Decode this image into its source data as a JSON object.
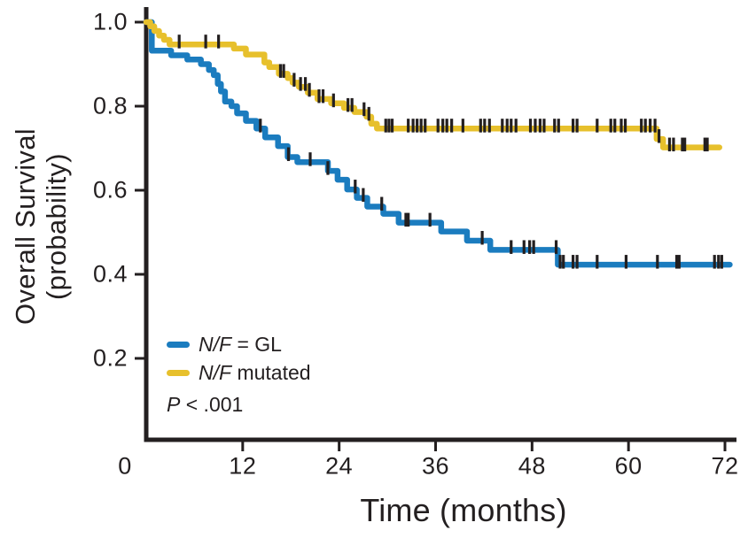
{
  "figure": {
    "ylabel_line1": "Overall Survival",
    "ylabel_line2": "(probability)",
    "xlabel": "Time (months)",
    "legend_gl": {
      "italic": "N/F",
      "rest": " = GL"
    },
    "legend_mutated": {
      "italic": "N/F",
      "rest": " mutated"
    },
    "p_value": {
      "italic": "P",
      "rest": " < .001"
    }
  },
  "chart_data": {
    "type": "line",
    "subtype": "kaplan-meier-step",
    "title": "",
    "xlabel": "Time (months)",
    "ylabel": "Overall Survival (probability)",
    "xlim": [
      0,
      72
    ],
    "ylim": [
      0,
      1.0
    ],
    "x_ticks": [
      0,
      12,
      24,
      36,
      48,
      60,
      72
    ],
    "y_tick_labels": [
      "1.0",
      "0.8",
      "0.6",
      "0.4",
      "0.2"
    ],
    "y_tick_values": [
      1.0,
      0.8,
      0.6,
      0.4,
      0.2
    ],
    "grid": false,
    "legend_position": "inside-lower-left",
    "p_value_text": "P < .001",
    "axis_color": "#231f20",
    "censor_mark": "vertical-tick",
    "series": [
      {
        "name": "N/F = GL",
        "color": "#1b7cbf",
        "steps": [
          [
            0,
            1.0
          ],
          [
            0.7,
            0.932
          ],
          [
            3.1,
            0.921
          ],
          [
            5.1,
            0.911
          ],
          [
            6.8,
            0.9
          ],
          [
            7.8,
            0.886
          ],
          [
            8.4,
            0.874
          ],
          [
            8.9,
            0.853
          ],
          [
            9.3,
            0.835
          ],
          [
            9.8,
            0.811
          ],
          [
            10.6,
            0.8
          ],
          [
            11.3,
            0.783
          ],
          [
            12.4,
            0.765
          ],
          [
            13.7,
            0.747
          ],
          [
            14.8,
            0.726
          ],
          [
            16.4,
            0.705
          ],
          [
            17.6,
            0.679
          ],
          [
            18.8,
            0.667
          ],
          [
            22.6,
            0.646
          ],
          [
            23.8,
            0.625
          ],
          [
            25.0,
            0.602
          ],
          [
            26.2,
            0.582
          ],
          [
            27.5,
            0.561
          ],
          [
            29.5,
            0.544
          ],
          [
            31.4,
            0.523
          ],
          [
            36.7,
            0.502
          ],
          [
            39.9,
            0.48
          ],
          [
            42.8,
            0.458
          ],
          [
            51.2,
            0.423
          ],
          [
            72.6,
            0.423
          ]
        ],
        "censor_times": [
          14.2,
          17.7,
          20.4,
          22.6,
          26.0,
          27.0,
          29.3,
          32.3,
          32.6,
          35.3,
          41.8,
          45.4,
          47.0,
          47.7,
          48.2,
          51.0,
          51.5,
          51.9,
          53.1,
          53.6,
          56.1,
          59.7,
          63.6,
          66.0,
          66.3,
          70.7,
          71.2,
          71.6
        ]
      },
      {
        "name": "N/F mutated",
        "color": "#e7c02c",
        "steps": [
          [
            0,
            1.0
          ],
          [
            0.5,
            0.99
          ],
          [
            1.0,
            0.979
          ],
          [
            1.6,
            0.968
          ],
          [
            2.2,
            0.958
          ],
          [
            2.9,
            0.947
          ],
          [
            10.9,
            0.937
          ],
          [
            12.4,
            0.923
          ],
          [
            14.7,
            0.904
          ],
          [
            15.3,
            0.893
          ],
          [
            16.5,
            0.877
          ],
          [
            17.6,
            0.867
          ],
          [
            18.2,
            0.856
          ],
          [
            19.0,
            0.846
          ],
          [
            20.1,
            0.832
          ],
          [
            21.3,
            0.817
          ],
          [
            23.0,
            0.807
          ],
          [
            24.6,
            0.796
          ],
          [
            25.9,
            0.786
          ],
          [
            27.4,
            0.775
          ],
          [
            28.0,
            0.758
          ],
          [
            28.7,
            0.747
          ],
          [
            63.5,
            0.722
          ],
          [
            64.3,
            0.702
          ],
          [
            71.3,
            0.702
          ]
        ],
        "censor_times": [
          4.1,
          7.4,
          9.0,
          16.7,
          17.1,
          18.4,
          19.2,
          19.8,
          20.3,
          21.5,
          22.0,
          23.3,
          25.1,
          25.6,
          27.1,
          27.7,
          29.8,
          30.2,
          30.6,
          32.6,
          33.2,
          33.7,
          34.2,
          34.7,
          36.3,
          36.9,
          37.4,
          38.0,
          39.4,
          41.6,
          42.1,
          42.7,
          44.3,
          44.9,
          45.4,
          46.0,
          47.8,
          48.4,
          49.0,
          49.5,
          50.8,
          51.3,
          53.1,
          53.6,
          56.1,
          57.8,
          58.3,
          59.1,
          59.6,
          61.6,
          62.1,
          62.7,
          63.3,
          63.8,
          65.1,
          65.6,
          66.7,
          67.0,
          69.5,
          69.8
        ]
      }
    ]
  }
}
